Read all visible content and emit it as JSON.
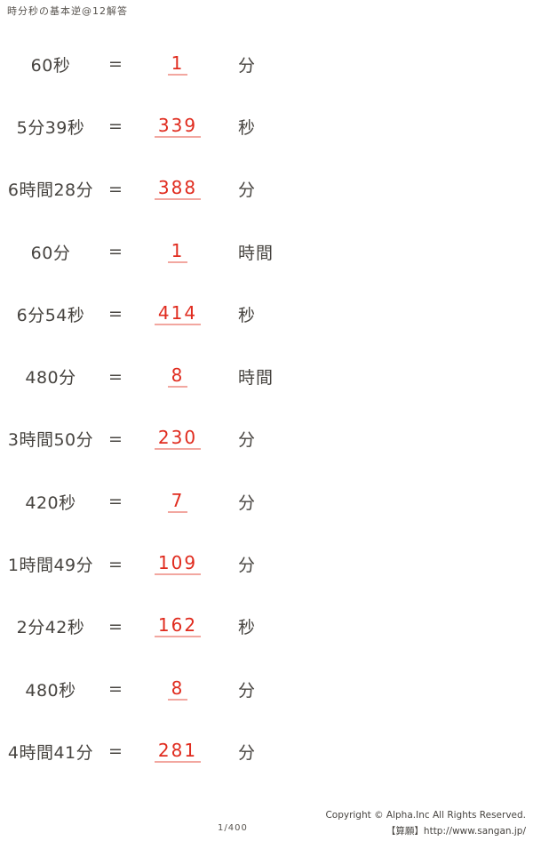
{
  "title": "時分秒の基本逆@12解答",
  "equals_sign": "=",
  "problems": [
    {
      "question": "60秒",
      "answer": "1",
      "unit": "分"
    },
    {
      "question": "5分39秒",
      "answer": "339",
      "unit": "秒"
    },
    {
      "question": "6時間28分",
      "answer": "388",
      "unit": "分"
    },
    {
      "question": "60分",
      "answer": "1",
      "unit": "時間"
    },
    {
      "question": "6分54秒",
      "answer": "414",
      "unit": "秒"
    },
    {
      "question": "480分",
      "answer": "8",
      "unit": "時間"
    },
    {
      "question": "3時間50分",
      "answer": "230",
      "unit": "分"
    },
    {
      "question": "420秒",
      "answer": "7",
      "unit": "分"
    },
    {
      "question": "1時間49分",
      "answer": "109",
      "unit": "分"
    },
    {
      "question": "2分42秒",
      "answer": "162",
      "unit": "秒"
    },
    {
      "question": "480秒",
      "answer": "8",
      "unit": "分"
    },
    {
      "question": "4時間41分",
      "answer": "281",
      "unit": "分"
    }
  ],
  "footer": {
    "page_number": "1/400",
    "copyright": "Copyright © Alpha.Inc All Rights Reserved.",
    "site": "【算願】http://www.sangan.jp/"
  },
  "colors": {
    "paper": "#ffffff",
    "ink": "#474440",
    "ink_light": "#57534e",
    "answer_red": "#e02b1e",
    "underline_pink": "#f2a7a0"
  }
}
